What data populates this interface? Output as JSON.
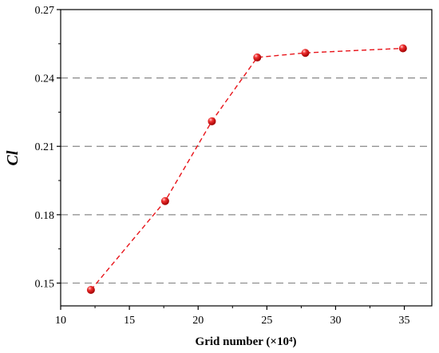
{
  "chart_data": {
    "type": "line",
    "xlabel": "Grid number (×10⁴)",
    "ylabel": "Cl",
    "xlim": [
      10,
      37
    ],
    "ylim": [
      0.14,
      0.27
    ],
    "x_ticks": [
      "10",
      "15",
      "20",
      "25",
      "30",
      "35"
    ],
    "y_ticks": [
      "0.15",
      "0.18",
      "0.21",
      "0.24",
      "0.27"
    ],
    "grid": "horizontal dashed at y ticks",
    "series": [
      {
        "color": "#e8141a",
        "line_style": "dashed",
        "marker": "sphere",
        "x": [
          12.2,
          17.6,
          21.0,
          24.3,
          27.8,
          34.9
        ],
        "y": [
          0.147,
          0.186,
          0.221,
          0.249,
          0.251,
          0.253
        ]
      }
    ]
  }
}
